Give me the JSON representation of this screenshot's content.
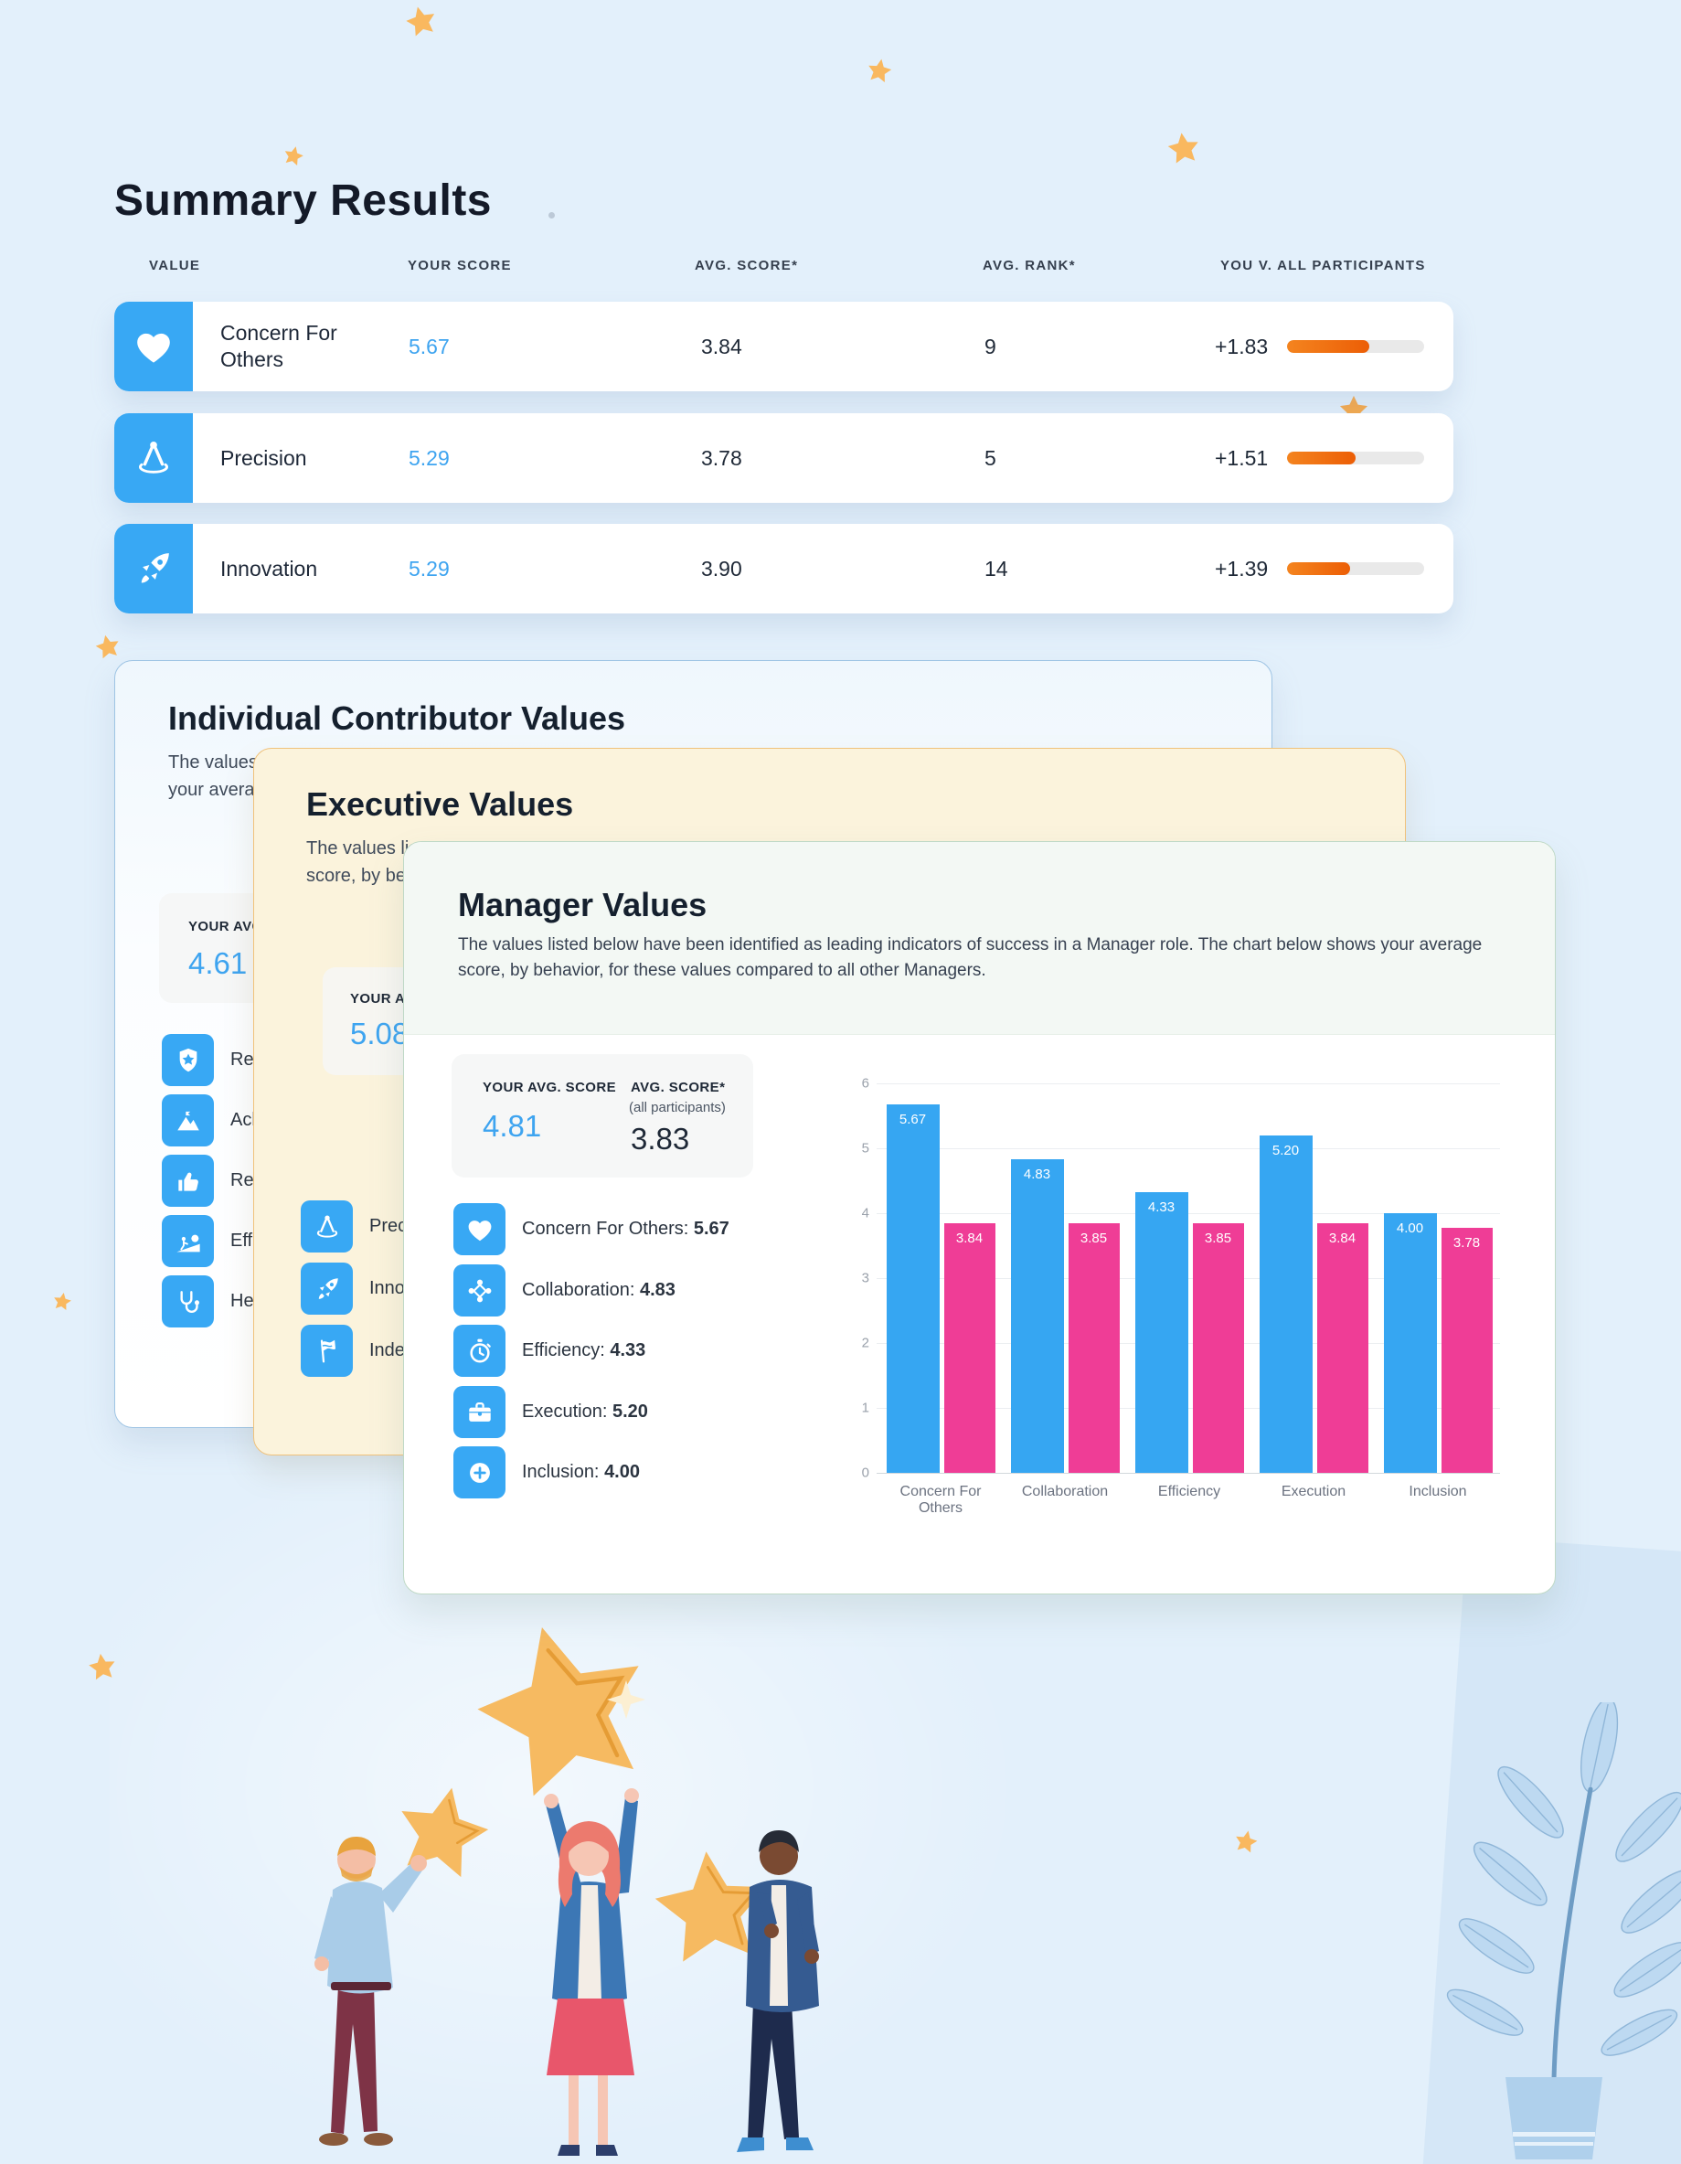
{
  "page": {
    "title": "Summary Results"
  },
  "colors": {
    "background": "#E3F0FB",
    "icon_tile_blue": "#38A8F4",
    "score_blue": "#3EA4F0",
    "progress_orange": "#EE6D0D",
    "chart_blue": "#36A6F2",
    "chart_pink": "#EF3D96",
    "star_orange": "#F9B85F",
    "executive_card_cream": "#FBF3DC"
  },
  "summary_table": {
    "columns": [
      "VALUE",
      "YOUR SCORE",
      "AVG. SCORE*",
      "AVG. RANK*",
      "YOU V. ALL PARTICIPANTS"
    ],
    "rows": [
      {
        "icon": "heart-icon",
        "value": "Concern For Others",
        "your_score": "5.67",
        "avg_score": "3.84",
        "avg_rank": "9",
        "delta": "+1.83",
        "bar_pct": 60
      },
      {
        "icon": "precision-compass-icon",
        "value": "Precision",
        "your_score": "5.29",
        "avg_score": "3.78",
        "avg_rank": "5",
        "delta": "+1.51",
        "bar_pct": 50
      },
      {
        "icon": "rocket-icon",
        "value": "Innovation",
        "your_score": "5.29",
        "avg_score": "3.90",
        "avg_rank": "14",
        "delta": "+1.39",
        "bar_pct": 46
      }
    ]
  },
  "individual_card": {
    "title": "Individual Contributor Values",
    "desc_line1": "The values l",
    "desc_line2": "your averag",
    "score_label": "YOUR AVG.",
    "score": "4.61",
    "items": [
      {
        "icon": "badge-star-icon",
        "label": "Res"
      },
      {
        "icon": "achievement-icon",
        "label": "Ach"
      },
      {
        "icon": "thumbs-up-icon",
        "label": "Res"
      },
      {
        "icon": "effort-icon",
        "label": "Eff"
      },
      {
        "icon": "stethoscope-icon",
        "label": "He"
      }
    ]
  },
  "executive_card": {
    "title": "Executive Values",
    "desc_line1": "The values lis",
    "desc_line2": "score, by beh",
    "score_label": "YOUR AVG. S",
    "score": "5.08",
    "items": [
      {
        "icon": "precision-compass-icon",
        "label": "Prec"
      },
      {
        "icon": "rocket-icon",
        "label": "Inno"
      },
      {
        "icon": "flag-icon",
        "label": "Inde"
      }
    ]
  },
  "manager_card": {
    "title": "Manager Values",
    "desc_line1": "The values listed below have been identified as leading indicators of success in a Manager role. The chart below shows your average",
    "desc_line2": "score, by behavior, for these values compared to all other Managers.",
    "your_avg_label": "YOUR AVG. SCORE",
    "your_avg": "4.81",
    "avg_label": "AVG. SCORE*",
    "avg_sublabel": "(all participants)",
    "avg": "3.83",
    "legend": [
      {
        "icon": "heart-icon",
        "label": "Concern For Others:",
        "value": "5.67"
      },
      {
        "icon": "collaboration-icon",
        "label": "Collaboration:",
        "value": "4.83"
      },
      {
        "icon": "stopwatch-icon",
        "label": "Efficiency:",
        "value": "4.33"
      },
      {
        "icon": "briefcase-icon",
        "label": "Execution:",
        "value": "5.20"
      },
      {
        "icon": "plus-circle-icon",
        "label": "Inclusion:",
        "value": "4.00"
      }
    ]
  },
  "chart_data": {
    "type": "bar",
    "title": "",
    "xlabel": "",
    "ylabel": "",
    "categories": [
      "Concern For Others",
      "Collaboration",
      "Efficiency",
      "Execution",
      "Inclusion"
    ],
    "series": [
      {
        "name": "Your Score",
        "color": "#36A6F2",
        "values": [
          5.67,
          4.83,
          4.33,
          5.2,
          4.0
        ]
      },
      {
        "name": "Avg Score (all participants)",
        "color": "#EF3D96",
        "values": [
          3.84,
          3.85,
          3.85,
          3.84,
          3.78
        ]
      }
    ],
    "ylim": [
      0,
      6
    ],
    "yticks": [
      0,
      1,
      2,
      3,
      4,
      5,
      6
    ],
    "grid": true,
    "value_labels": true,
    "legend_position": "none"
  }
}
